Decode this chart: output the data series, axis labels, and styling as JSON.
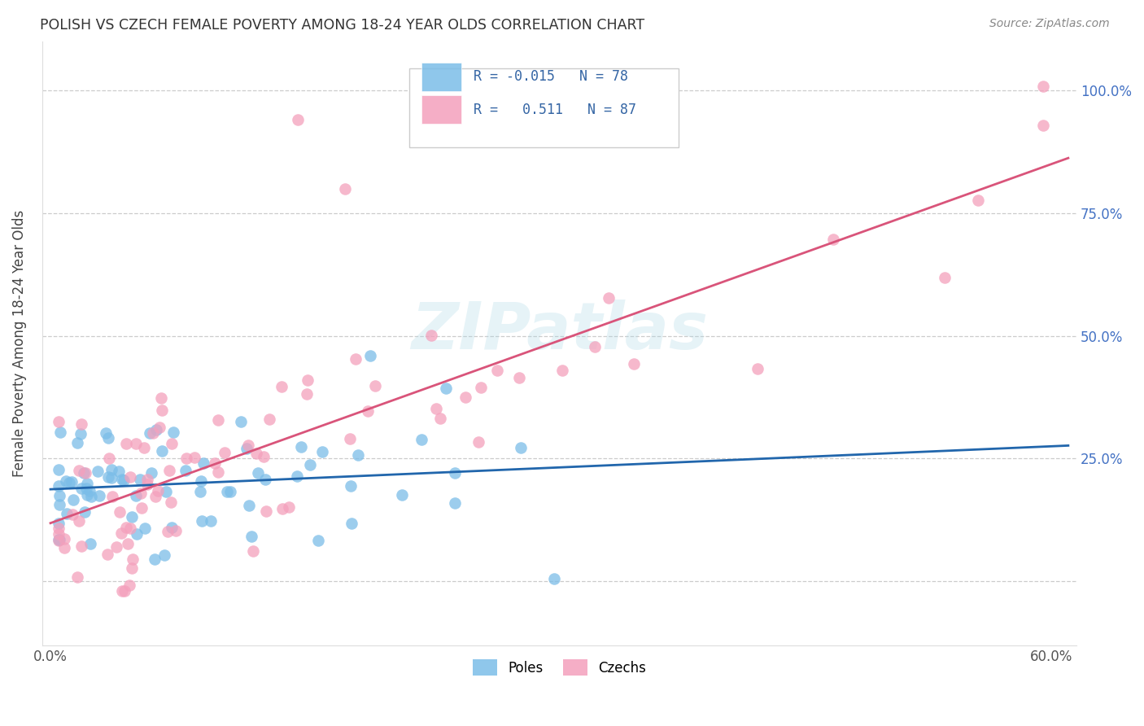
{
  "title": "POLISH VS CZECH FEMALE POVERTY AMONG 18-24 YEAR OLDS CORRELATION CHART",
  "source": "Source: ZipAtlas.com",
  "ylabel": "Female Poverty Among 18-24 Year Olds",
  "xlim": [
    -0.005,
    0.615
  ],
  "ylim": [
    -0.13,
    1.1
  ],
  "x_tick_positions": [
    0.0,
    0.1,
    0.2,
    0.3,
    0.4,
    0.5,
    0.6
  ],
  "x_tick_labels": [
    "0.0%",
    "",
    "",
    "",
    "",
    "",
    "60.0%"
  ],
  "y_tick_positions": [
    0.0,
    0.25,
    0.5,
    0.75,
    1.0
  ],
  "y_tick_labels": [
    "",
    "25.0%",
    "50.0%",
    "75.0%",
    "100.0%"
  ],
  "poles_color": "#7bbde8",
  "czechs_color": "#f4a0bc",
  "poles_line_color": "#2166ac",
  "czechs_line_color": "#d9547a",
  "poles_R": -0.015,
  "poles_N": 78,
  "czechs_R": 0.511,
  "czechs_N": 87,
  "watermark": "ZIPatlas",
  "background_color": "#ffffff",
  "grid_color": "#cccccc"
}
